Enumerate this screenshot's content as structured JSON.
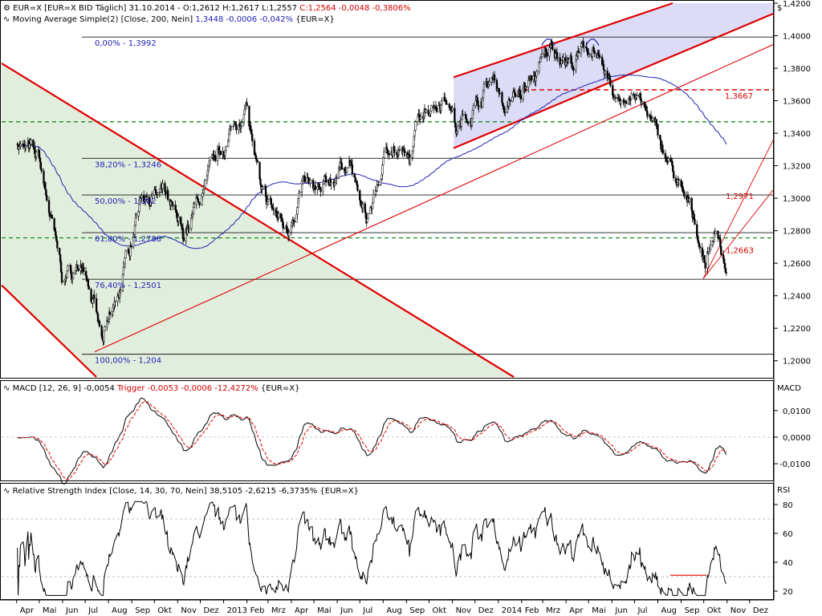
{
  "panels": {
    "price": {
      "legend_line1": {
        "pre": "EUR=X [EUR=X BID Täglich] 31.10.2014 - O:1,2612 H:1,2617 L:1,2557 ",
        "red": "C:1,2564 -0,0048 -0,3806%"
      },
      "legend_line2": {
        "pre": "Moving Average Simple(2) [Close, 200, Nein] ",
        "blue": "1,3448 -0,0006 -0,042%",
        "post": " {EUR=X}"
      },
      "axis_unit": "$"
    },
    "macd": {
      "legend": {
        "pre": "MACD [12, 26, 9] -0,0054 ",
        "red": "Trigger -0,0053 -0,0006 -12,4272%",
        "post": " {EUR=X}"
      },
      "axis_unit": "MACD"
    },
    "rsi": {
      "legend": {
        "pre": "Relative Strength Index [Close, 14, 30, 70, Nein] 38,5105 -2,6215 -6,3735% {EUR=X}"
      },
      "axis_unit": "RSI"
    }
  },
  "colors": {
    "price": "#000000",
    "moving_average": "#1f1fb4",
    "trendline": "#e00000",
    "fib_line": "#1f1fb4",
    "green_dashed": "#008000",
    "channel_fill_green": "#e2eedd",
    "channel_fill_blue": "#dcdcf6",
    "macd": "#000000",
    "trigger": "#e00000"
  },
  "chart_data": [
    {
      "type": "line",
      "name": "price",
      "x": [
        "2012-04-01",
        "2012-05-01",
        "2012-06-01",
        "2012-07-01",
        "2012-07-24",
        "2012-08-15",
        "2012-09-14",
        "2012-10-15",
        "2012-11-08",
        "2012-12-15",
        "2013-01-31",
        "2013-02-20",
        "2013-03-27",
        "2013-04-15",
        "2013-05-08",
        "2013-06-17",
        "2013-07-09",
        "2013-08-10",
        "2013-09-05",
        "2013-09-20",
        "2013-10-25",
        "2013-11-07",
        "2013-12-27",
        "2014-01-10",
        "2014-02-15",
        "2014-03-13",
        "2014-04-10",
        "2014-05-08",
        "2014-05-20",
        "2014-06-05",
        "2014-07-01",
        "2014-08-01",
        "2014-09-05",
        "2014-09-20",
        "2014-10-03",
        "2014-10-15",
        "2014-10-24",
        "2014-10-31"
      ],
      "y": [
        1.335,
        1.323,
        1.25,
        1.26,
        1.21,
        1.24,
        1.305,
        1.3,
        1.275,
        1.315,
        1.358,
        1.3,
        1.28,
        1.31,
        1.3,
        1.325,
        1.283,
        1.335,
        1.32,
        1.355,
        1.365,
        1.342,
        1.375,
        1.356,
        1.372,
        1.393,
        1.383,
        1.395,
        1.375,
        1.36,
        1.365,
        1.338,
        1.298,
        1.285,
        1.26,
        1.28,
        1.27,
        1.2564
      ],
      "ylim": [
        1.19,
        1.42
      ],
      "yticks": [
        "1,2000",
        "1,2200",
        "1,2400",
        "1,2600",
        "1,2800",
        "1,3000",
        "1,3200",
        "1,3400",
        "1,3600",
        "1,3800",
        "1,4000",
        "1,4200"
      ],
      "fib_levels": [
        {
          "label": "0,00% - 1,3992",
          "value": 1.3992
        },
        {
          "label": "38,20% - 1,3246",
          "value": 1.3246
        },
        {
          "label": "50,00% - 1,302",
          "value": 1.302
        },
        {
          "label": "61,80% - 1,2788",
          "value": 1.2788
        },
        {
          "label": "76,40% - 1,2501",
          "value": 1.2501
        },
        {
          "label": "100,00% - 1,204",
          "value": 1.204
        }
      ],
      "horizontal_markers": [
        {
          "label": "1,3667",
          "value": 1.3667,
          "style": "red-dashed"
        },
        {
          "label": "",
          "value": 1.2756,
          "style": "green-dashed"
        },
        {
          "label": "",
          "value": 1.347,
          "style": "green-dashed"
        }
      ],
      "annotations": [
        {
          "label": "1,2971",
          "value": 1.2971
        },
        {
          "label": "1,2663",
          "value": 1.2663
        }
      ]
    },
    {
      "type": "line",
      "name": "MACD",
      "series_names": [
        "MACD",
        "Trigger"
      ],
      "yticks": [
        "-0,0100",
        "0,0000",
        "0,0100"
      ],
      "ylim": [
        -0.016,
        0.016
      ]
    },
    {
      "type": "line",
      "name": "RSI",
      "yticks": [
        "20",
        "40",
        "60",
        "80"
      ],
      "ylim": [
        15,
        85
      ],
      "reference_line": 30
    }
  ],
  "time_axis": {
    "labels": [
      "Apr",
      "Mai",
      "Jun",
      "Jul",
      "Aug",
      "Sep",
      "Okt",
      "Nov",
      "Dez",
      "2013",
      "Feb",
      "Mrz",
      "Apr",
      "Mai",
      "Jun",
      "Jul",
      "Aug",
      "Sep",
      "Okt",
      "Nov",
      "Dez",
      "2014",
      "Feb",
      "Mrz",
      "Apr",
      "Mai",
      "Jun",
      "Jul",
      "Aug",
      "Sep",
      "Okt",
      "Nov",
      "Dez"
    ]
  }
}
